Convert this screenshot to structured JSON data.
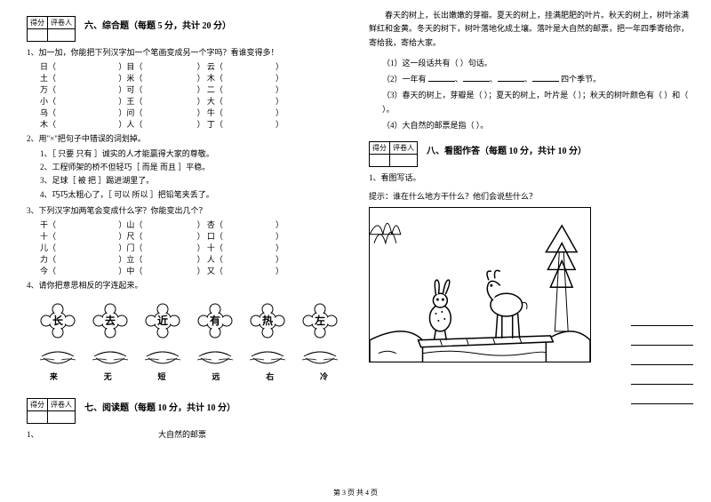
{
  "scorebox": {
    "score": "得分",
    "reviewer": "评卷人"
  },
  "sec6": {
    "title": "六、综合题（每题 5 分，共计 20 分）",
    "q1": "1、加一加，你能把下列汉字加一个笔画变成另一个字吗？看谁变得多！",
    "q1rows": [
      [
        "日（",
        "）目（",
        "）  云（",
        "）"
      ],
      [
        "土（",
        "）米（",
        "）  木（",
        "）"
      ],
      [
        "万（",
        "）可（",
        "）  二（",
        "）"
      ],
      [
        "小（",
        "）王（",
        "）  大（",
        "）"
      ],
      [
        "乌（",
        "）问（",
        "）  牛（",
        "）"
      ],
      [
        "木（",
        "）人（",
        "）  丁（",
        "）"
      ]
    ],
    "q2": "2、用\"×\"把句子中错误的词划掉。",
    "q2lines": [
      "1、［ 只要  只有 ］诚实的人才能赢得大家的尊敬。",
      "2、工程师架的桥不但轻巧［ 而是  而且 ］平稳。",
      "3、足球［ 被  把 ］踢进湖里了。",
      "4、巧巧太粗心了，［ 可以  所以 ］把铅笔夹丢了。"
    ],
    "q3": "3、下列汉字加两笔会变成什么字？你能变出几个？",
    "q3rows": [
      [
        "干（",
        "）山（",
        "）  杏（",
        "）"
      ],
      [
        "十（",
        "）尺（",
        "）  口（",
        "）"
      ],
      [
        "儿（",
        "）门（",
        "）  十（",
        "）"
      ],
      [
        "力（",
        "）立（",
        "）  人（",
        "）"
      ],
      [
        "今（",
        "）中（",
        "）  又（",
        "）"
      ]
    ],
    "q4": "4、请你把意思相反的字连起来。",
    "flowers": [
      "长",
      "去",
      "近",
      "有",
      "热",
      "左"
    ],
    "boats": [
      "来",
      "无",
      "短",
      "远",
      "右",
      "冷"
    ]
  },
  "sec7": {
    "title": "七、阅读题（每题 10 分，共计 10 分）",
    "q1": "1、",
    "subtitle": "大自然的邮票",
    "passage": "春天的树上，长出嫩嫩的芽瓣。夏天的树上，挂满肥肥的叶片。秋天的树上，树叶涂满鲜红和金黄。冬天的树下，树叶落地化成土壤。落叶是大自然的邮票，把一年四季寄给你，寄给我，寄给大家。",
    "p1": "（1）这一段话共有（      ）句话。",
    "p2a": "（2）一年有",
    "p2b": "四个季节。",
    "p3": "（3）春天的树上，芽瓣是（          ）；夏天的树上，叶片是（          ）；秋天的树叶颜色有（          ）和（          ）。",
    "p4": "（4）大自然的邮票是指（          ）。"
  },
  "sec8": {
    "title": "八、看图作答（每题 10 分，共计 10 分）",
    "q1": "1、看图写话。",
    "hint": "提示：谁在什么地方干什么？他们会说些什么？"
  },
  "footer": "第 3 页 共 4 页"
}
